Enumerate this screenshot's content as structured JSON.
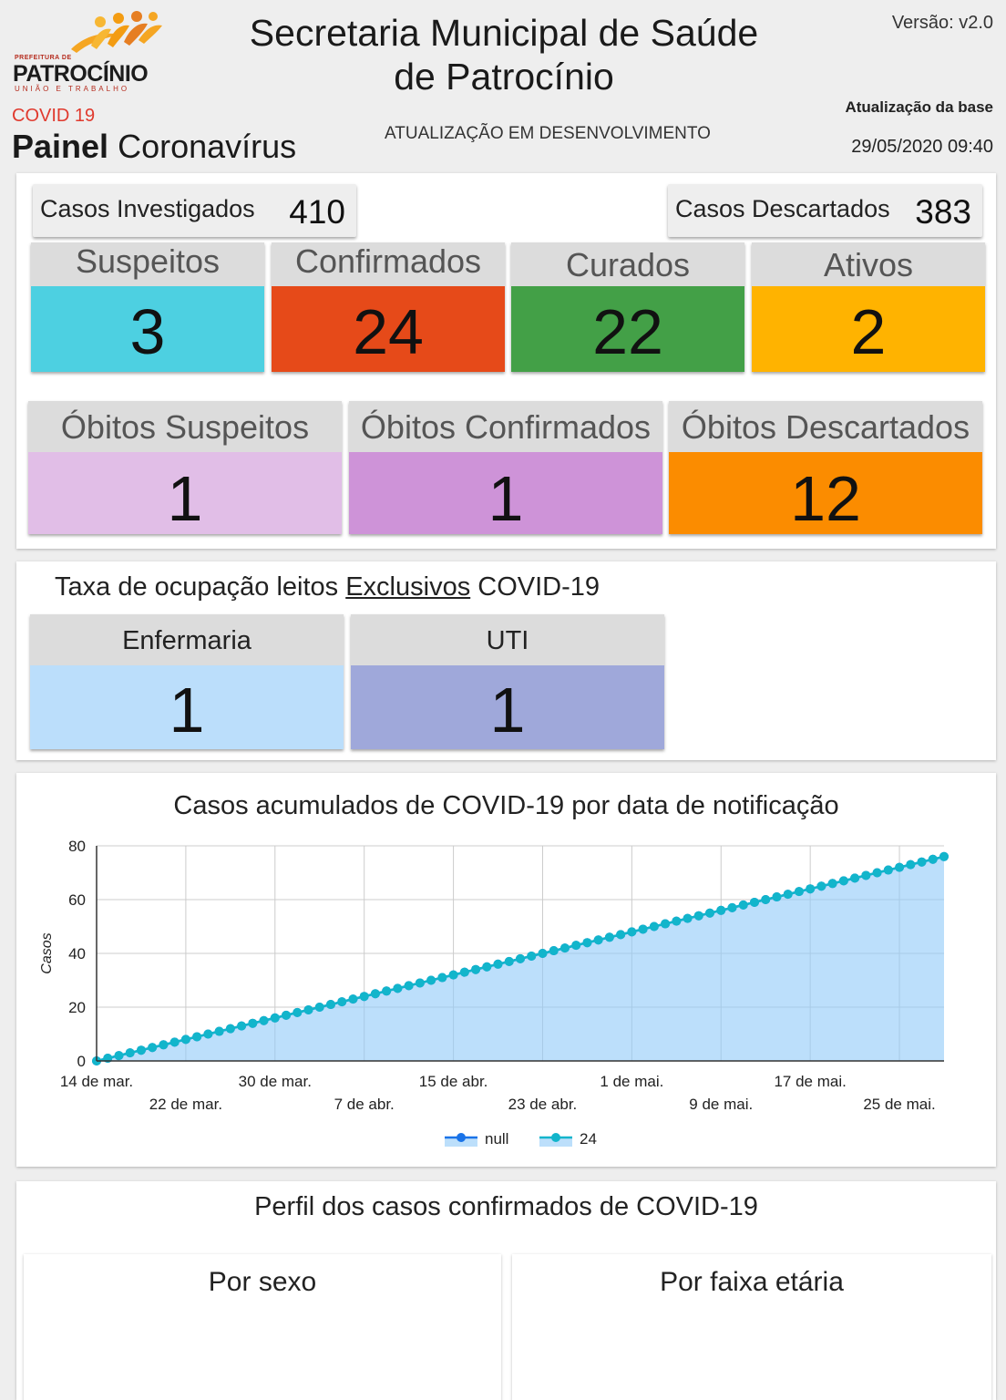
{
  "header": {
    "logo_prefix": "PREFEITURA DE",
    "logo_city": "PATROCÍNIO",
    "logo_tagline": "UNIÃO E TRABALHO",
    "covid_label": "COVID 19",
    "panel_bold": "Painel",
    "panel_rest": "Coronavírus",
    "title_line1": "Secretaria Municipal de Saúde",
    "title_line2": "de Patrocínio",
    "dev_note": "ATUALIZAÇÃO EM DESENVOLVIMENTO",
    "version": "Versão: v2.0",
    "update_label": "Atualização da base",
    "update_date": "29/05/2020 09:40"
  },
  "cases": {
    "investigated_label": "Casos Investigados",
    "investigated_value": "410",
    "discarded_label": "Casos Descartados",
    "discarded_value": "383",
    "stats": [
      {
        "label": "Suspeitos",
        "value": "3",
        "color": "#4dd0e1"
      },
      {
        "label": "Confirmados",
        "value": "24",
        "color": "#e64a19"
      },
      {
        "label": "Curados",
        "value": "22",
        "color": "#43a047"
      },
      {
        "label": "Ativos",
        "value": "2",
        "color": "#ffb300"
      }
    ],
    "deaths": [
      {
        "label": "Óbitos Suspeitos",
        "value": "1",
        "color": "#e1bee7"
      },
      {
        "label": "Óbitos Confirmados",
        "value": "1",
        "color": "#ce93d8"
      },
      {
        "label": "Óbitos Descartados",
        "value": "12",
        "color": "#fb8c00"
      }
    ]
  },
  "occupancy": {
    "title_pre": "Taxa de ocupação leitos ",
    "title_underlined": "Exclusivos",
    "title_post": " COVID-19",
    "beds": [
      {
        "label": "Enfermaria",
        "value": "1",
        "color": "#bbdefb"
      },
      {
        "label": "UTI",
        "value": "1",
        "color": "#9fa8da"
      }
    ]
  },
  "chart_data": {
    "type": "area",
    "title": "Casos acumulados de COVID-19 por data de notificação",
    "ylabel": "Casos",
    "xlabel": "",
    "ylim": [
      0,
      80
    ],
    "yticks": [
      0,
      20,
      40,
      60,
      80
    ],
    "x_start": "14 de mar.",
    "x_end": "28 de mai.",
    "x_ticks": [
      "14 de mar.",
      "22 de mar.",
      "30 de mar.",
      "7 de abr.",
      "15 de abr.",
      "23 de abr.",
      "1 de mai.",
      "9 de mai.",
      "17 de mai.",
      "25 de mai."
    ],
    "grid": true,
    "legend_position": "bottom",
    "series": [
      {
        "name": "null",
        "color": "#1a73e8",
        "values": [
          0,
          1,
          2,
          3,
          4,
          5,
          6,
          7,
          8,
          9,
          10,
          11,
          12,
          13,
          14,
          15,
          16,
          17,
          18,
          19,
          20,
          21,
          22,
          23,
          24,
          25,
          26,
          27,
          28,
          29,
          30,
          31,
          32,
          33,
          34,
          35,
          36,
          37,
          38,
          39,
          40,
          41,
          42,
          43,
          44,
          45,
          46,
          47,
          48,
          49,
          50,
          51,
          52,
          53,
          54,
          55,
          56,
          57,
          58,
          59,
          60,
          61,
          62,
          63,
          64,
          65,
          66,
          67,
          68,
          69,
          70,
          71,
          72,
          73,
          74,
          75,
          76
        ]
      },
      {
        "name": "24",
        "color": "#12b5cb",
        "values": [
          0,
          1,
          2,
          3,
          4,
          5,
          6,
          7,
          8,
          9,
          10,
          11,
          12,
          13,
          14,
          15,
          16,
          17,
          18,
          19,
          20,
          21,
          22,
          23,
          24,
          25,
          26,
          27,
          28,
          29,
          30,
          31,
          32,
          33,
          34,
          35,
          36,
          37,
          38,
          39,
          40,
          41,
          42,
          43,
          44,
          45,
          46,
          47,
          48,
          49,
          50,
          51,
          52,
          53,
          54,
          55,
          56,
          57,
          58,
          59,
          60,
          61,
          62,
          63,
          64,
          65,
          66,
          67,
          68,
          69,
          70,
          71,
          72,
          73,
          74,
          75,
          76
        ]
      }
    ]
  },
  "profile": {
    "title": "Perfil dos casos confirmados de COVID-19",
    "by_sex": "Por sexo",
    "by_age": "Por faixa etária"
  }
}
